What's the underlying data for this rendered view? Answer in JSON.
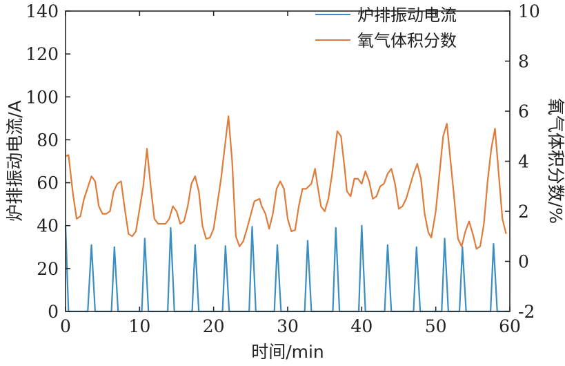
{
  "chart_data": {
    "type": "line",
    "x_axis": {
      "label": "时间/min",
      "range": [
        0,
        60
      ],
      "ticks": [
        0,
        10,
        20,
        30,
        40,
        50,
        60
      ]
    },
    "y_axis_left": {
      "label": "炉排振动电流/A",
      "range": [
        0,
        140
      ],
      "ticks": [
        0,
        20,
        40,
        60,
        80,
        100,
        120,
        140
      ]
    },
    "y_axis_right": {
      "label": "氧气体积分数/%",
      "range": [
        -2,
        10
      ],
      "ticks": [
        -2,
        0,
        2,
        4,
        6,
        8,
        10
      ]
    },
    "legend": {
      "placement": "top-right"
    },
    "grid": false,
    "series": [
      {
        "name": "炉排振动电流",
        "axis": "left",
        "color": "#3a8ec2",
        "points": [
          [
            0,
            40
          ],
          [
            0.4,
            0
          ],
          [
            3,
            0
          ],
          [
            3.5,
            31
          ],
          [
            4,
            0
          ],
          [
            6.2,
            0
          ],
          [
            6.6,
            30
          ],
          [
            7.1,
            0
          ],
          [
            10.3,
            0
          ],
          [
            10.7,
            34
          ],
          [
            11.2,
            0
          ],
          [
            13.8,
            0
          ],
          [
            14.2,
            39
          ],
          [
            14.7,
            0
          ],
          [
            17.1,
            0
          ],
          [
            17.5,
            31
          ],
          [
            18,
            0
          ],
          [
            21.2,
            0
          ],
          [
            21.6,
            30.5
          ],
          [
            22.1,
            0
          ],
          [
            24.8,
            0
          ],
          [
            25.2,
            39.5
          ],
          [
            25.7,
            0
          ],
          [
            28.2,
            0
          ],
          [
            28.6,
            31
          ],
          [
            29.1,
            0
          ],
          [
            32.3,
            0
          ],
          [
            32.7,
            33
          ],
          [
            33.2,
            0
          ],
          [
            36.1,
            0
          ],
          [
            36.5,
            39
          ],
          [
            37,
            0
          ],
          [
            39.6,
            0
          ],
          [
            40,
            40
          ],
          [
            40.5,
            0
          ],
          [
            43.1,
            0
          ],
          [
            43.5,
            31
          ],
          [
            44,
            0
          ],
          [
            47,
            0
          ],
          [
            47.4,
            30
          ],
          [
            47.9,
            0
          ],
          [
            50.8,
            0
          ],
          [
            51.2,
            34
          ],
          [
            51.7,
            0
          ],
          [
            53.2,
            0
          ],
          [
            53.6,
            30
          ],
          [
            54.1,
            0
          ],
          [
            57.4,
            0
          ],
          [
            57.8,
            31.5
          ],
          [
            58.3,
            0
          ],
          [
            60,
            0
          ]
        ]
      },
      {
        "name": "氧气体积分数",
        "axis": "right",
        "color": "#e07b39",
        "points": [
          [
            0,
            4.2
          ],
          [
            0.4,
            4.25
          ],
          [
            1,
            2.7
          ],
          [
            1.5,
            1.7
          ],
          [
            2,
            1.8
          ],
          [
            2.5,
            2.5
          ],
          [
            3.5,
            3.4
          ],
          [
            4,
            3.2
          ],
          [
            4.5,
            2.2
          ],
          [
            5,
            1.9
          ],
          [
            5.5,
            1.9
          ],
          [
            6,
            2
          ],
          [
            6.5,
            2.8
          ],
          [
            7,
            3.1
          ],
          [
            7.5,
            3.2
          ],
          [
            8,
            2.1
          ],
          [
            8.5,
            1.1
          ],
          [
            9,
            1
          ],
          [
            9.5,
            1.2
          ],
          [
            10.5,
            3
          ],
          [
            11,
            4.5
          ],
          [
            11.5,
            3
          ],
          [
            12,
            1.7
          ],
          [
            12.5,
            1.5
          ],
          [
            13.5,
            1.5
          ],
          [
            14,
            1.7
          ],
          [
            14.5,
            2.2
          ],
          [
            15,
            2
          ],
          [
            15.5,
            1.5
          ],
          [
            16,
            1.6
          ],
          [
            16.5,
            2.2
          ],
          [
            17,
            3.1
          ],
          [
            17.5,
            3.4
          ],
          [
            18,
            2.8
          ],
          [
            18.5,
            1.4
          ],
          [
            19,
            0.9
          ],
          [
            19.5,
            0.95
          ],
          [
            20,
            1.3
          ],
          [
            21,
            3.3
          ],
          [
            22,
            5.8
          ],
          [
            22.5,
            4
          ],
          [
            23,
            1
          ],
          [
            23.5,
            0.6
          ],
          [
            24,
            0.8
          ],
          [
            24.5,
            1.3
          ],
          [
            25.5,
            2.4
          ],
          [
            26.2,
            2.5
          ],
          [
            26.5,
            2.2
          ],
          [
            27,
            1.9
          ],
          [
            27.5,
            1.3
          ],
          [
            28,
            1.9
          ],
          [
            28.5,
            2.9
          ],
          [
            29,
            3.2
          ],
          [
            29.5,
            2.9
          ],
          [
            30,
            1.7
          ],
          [
            30.5,
            1.2
          ],
          [
            31,
            1.25
          ],
          [
            31.5,
            2.2
          ],
          [
            32,
            2.9
          ],
          [
            32.5,
            2.9
          ],
          [
            33.2,
            3.1
          ],
          [
            33.7,
            3.7
          ],
          [
            34,
            3.1
          ],
          [
            34.5,
            2.2
          ],
          [
            35,
            2
          ],
          [
            35.5,
            2.5
          ],
          [
            36,
            3.5
          ],
          [
            36.7,
            5.2
          ],
          [
            37.2,
            5
          ],
          [
            37.7,
            3.7
          ],
          [
            38,
            2.8
          ],
          [
            38.5,
            2.6
          ],
          [
            39,
            3.3
          ],
          [
            39.5,
            3.3
          ],
          [
            40,
            3.1
          ],
          [
            40.5,
            3.6
          ],
          [
            41,
            3.2
          ],
          [
            41.5,
            2.5
          ],
          [
            42,
            2.6
          ],
          [
            42.5,
            3
          ],
          [
            43,
            3.1
          ],
          [
            43.5,
            3.5
          ],
          [
            44,
            3.7
          ],
          [
            44.5,
            3.1
          ],
          [
            45,
            2.1
          ],
          [
            45.5,
            2.2
          ],
          [
            46,
            2.5
          ],
          [
            46.5,
            3
          ],
          [
            47,
            3.5
          ],
          [
            47.5,
            3.9
          ],
          [
            48,
            3.3
          ],
          [
            48.5,
            1.9
          ],
          [
            49,
            1.15
          ],
          [
            49.4,
            0.95
          ],
          [
            50,
            2
          ],
          [
            50.5,
            3.5
          ],
          [
            51,
            5
          ],
          [
            51.5,
            5.5
          ],
          [
            52,
            4
          ],
          [
            52.5,
            2.5
          ],
          [
            53,
            0.9
          ],
          [
            53.5,
            0.6
          ],
          [
            54,
            1.2
          ],
          [
            54.5,
            1.6
          ],
          [
            55,
            1.1
          ],
          [
            55.5,
            0.5
          ],
          [
            56,
            0.6
          ],
          [
            56.5,
            1.5
          ],
          [
            57,
            3.2
          ],
          [
            57.5,
            4.5
          ],
          [
            58,
            5.3
          ],
          [
            58.5,
            3.5
          ],
          [
            59,
            1.7
          ],
          [
            59.5,
            1.1
          ]
        ]
      }
    ]
  }
}
